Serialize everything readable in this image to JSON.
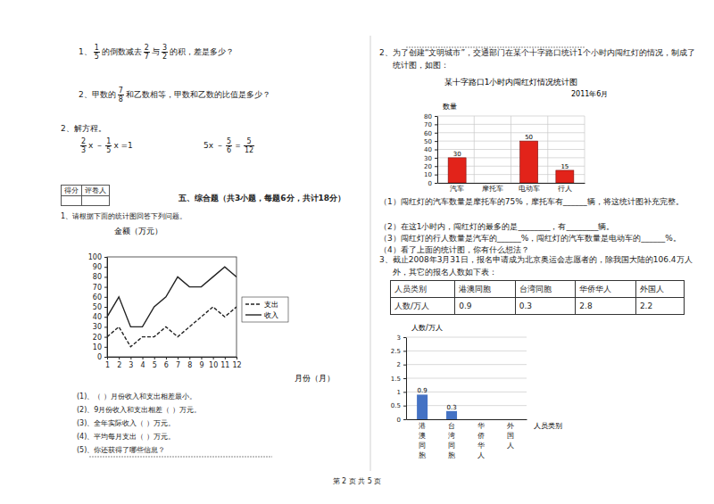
{
  "left": {
    "calc": [
      [
        {
          "text": "1、"
        },
        {
          "frac": [
            "1",
            "5"
          ]
        },
        {
          "text": "的倒数减去"
        },
        {
          "frac": [
            "2",
            "7"
          ]
        },
        {
          "text": "与"
        },
        {
          "frac": [
            "3",
            "2"
          ]
        },
        {
          "text": "的积，差是多少？"
        }
      ],
      [
        {
          "text": "2、甲数的"
        },
        {
          "frac": [
            "7",
            "8"
          ]
        },
        {
          "text": "和乙数相等，甲数和乙数的比值是多少？"
        }
      ]
    ],
    "equations_title": "2、解方程。",
    "equations": [
      [
        {
          "frac": [
            "2",
            "3"
          ]
        },
        {
          "text": "x －"
        },
        {
          "frac": [
            "1",
            "5"
          ]
        },
        {
          "text": "x =1"
        }
      ],
      [
        {
          "text": "5x －"
        },
        {
          "frac": [
            "5",
            "6"
          ]
        },
        {
          "text": "＝"
        },
        {
          "frac": [
            "5",
            "12"
          ]
        }
      ]
    ],
    "score_box": [
      "得分",
      "评卷人"
    ],
    "section_title": "五、综合题（共3小题，每题6分，共计18分）",
    "q1_intro": "1、请根据下面的统计图回答下列问题。",
    "q1_items": [
      "(1)、（ ）月份收入和支出相差最小。",
      "(2)、9月份收入和支出相差（ ）万元。",
      "(3)、全年实际收入（ ）万元。",
      "(4)、平均每月支出（ ）万元。",
      "(5)、你还获得了哪些信息？"
    ]
  },
  "right": {
    "q2_intro": "2、为了创建“文明城市”，交通部门在某个十字路口统计1个小时内闯红灯的情况，制成了统计图，如图：",
    "q2_items": [
      "（1）闯红灯的汽车数量是摩托车的75%，摩托车有______辆，将这统计图补充完整。",
      "（2）在这1小时内，闯红灯的最多的是________，有________辆。",
      "（3）闯红灯的行人数量是汽车的______%，闯红灯的汽车数量是电动车的______%。",
      "（4）看了上面的统计图，你有什么想法？"
    ],
    "q3_intro": "3、截止2008年3月31日，报名申请成为北京奥运会志愿者的，除我国大陆的106.4万人外，其它的报名人数如下表：",
    "table": {
      "header": [
        "人员类别",
        "港澳同胞",
        "台湾同胞",
        "华侨华人",
        "外国人"
      ],
      "rows": [
        [
          "人数/万人",
          "0.9",
          "0.3",
          "2.8",
          "2.2"
        ]
      ]
    }
  },
  "footer": "第 2 页 共 5 页",
  "chart_data": [
    {
      "type": "line",
      "y_label": "金额（万元）",
      "x_label": "月份（月）",
      "x": [
        1,
        2,
        3,
        4,
        5,
        6,
        7,
        8,
        9,
        10,
        11,
        12
      ],
      "xlim": [
        1,
        12
      ],
      "xticks": [
        1,
        2,
        3,
        4,
        5,
        6,
        7,
        8,
        9,
        10,
        11,
        12
      ],
      "ylim": [
        0,
        100
      ],
      "yticks": [
        0,
        10,
        20,
        30,
        40,
        50,
        60,
        70,
        80,
        90,
        100
      ],
      "grid": false,
      "legend": "right",
      "series": [
        {
          "name": "支出",
          "color": "#222222",
          "line_style": "dashed",
          "values": [
            20,
            30,
            10,
            20,
            20,
            30,
            20,
            30,
            40,
            50,
            40,
            50
          ]
        },
        {
          "name": "收入",
          "color": "#222222",
          "line_style": "solid",
          "values": [
            40,
            60,
            30,
            30,
            50,
            60,
            80,
            70,
            70,
            80,
            90,
            80
          ]
        }
      ]
    },
    {
      "type": "bar",
      "title": "某十字路口1小时内闯红灯情况统计图",
      "subtitle": "2011年6月",
      "y_label": "数量",
      "categories": [
        "汽车",
        "摩托车",
        "电动车",
        "行人"
      ],
      "values": [
        30,
        null,
        50,
        15
      ],
      "color": "#e2231a",
      "ylim": [
        0,
        80
      ],
      "yticks": [
        0,
        10,
        20,
        30,
        40,
        50,
        60,
        70,
        80
      ],
      "grid": true,
      "data_labels": true
    },
    {
      "type": "bar",
      "y_label": "人数/万人",
      "x_label": "人员类别",
      "categories": [
        "港澳同胞",
        "台湾同胞",
        "华侨华人",
        "外国人"
      ],
      "values": [
        0.9,
        0.3,
        null,
        null
      ],
      "color": "#4472c4",
      "ylim": [
        0,
        3
      ],
      "yticks": [
        0,
        0.5,
        1,
        1.5,
        2,
        2.5,
        3
      ],
      "grid": true,
      "data_labels": true
    }
  ]
}
